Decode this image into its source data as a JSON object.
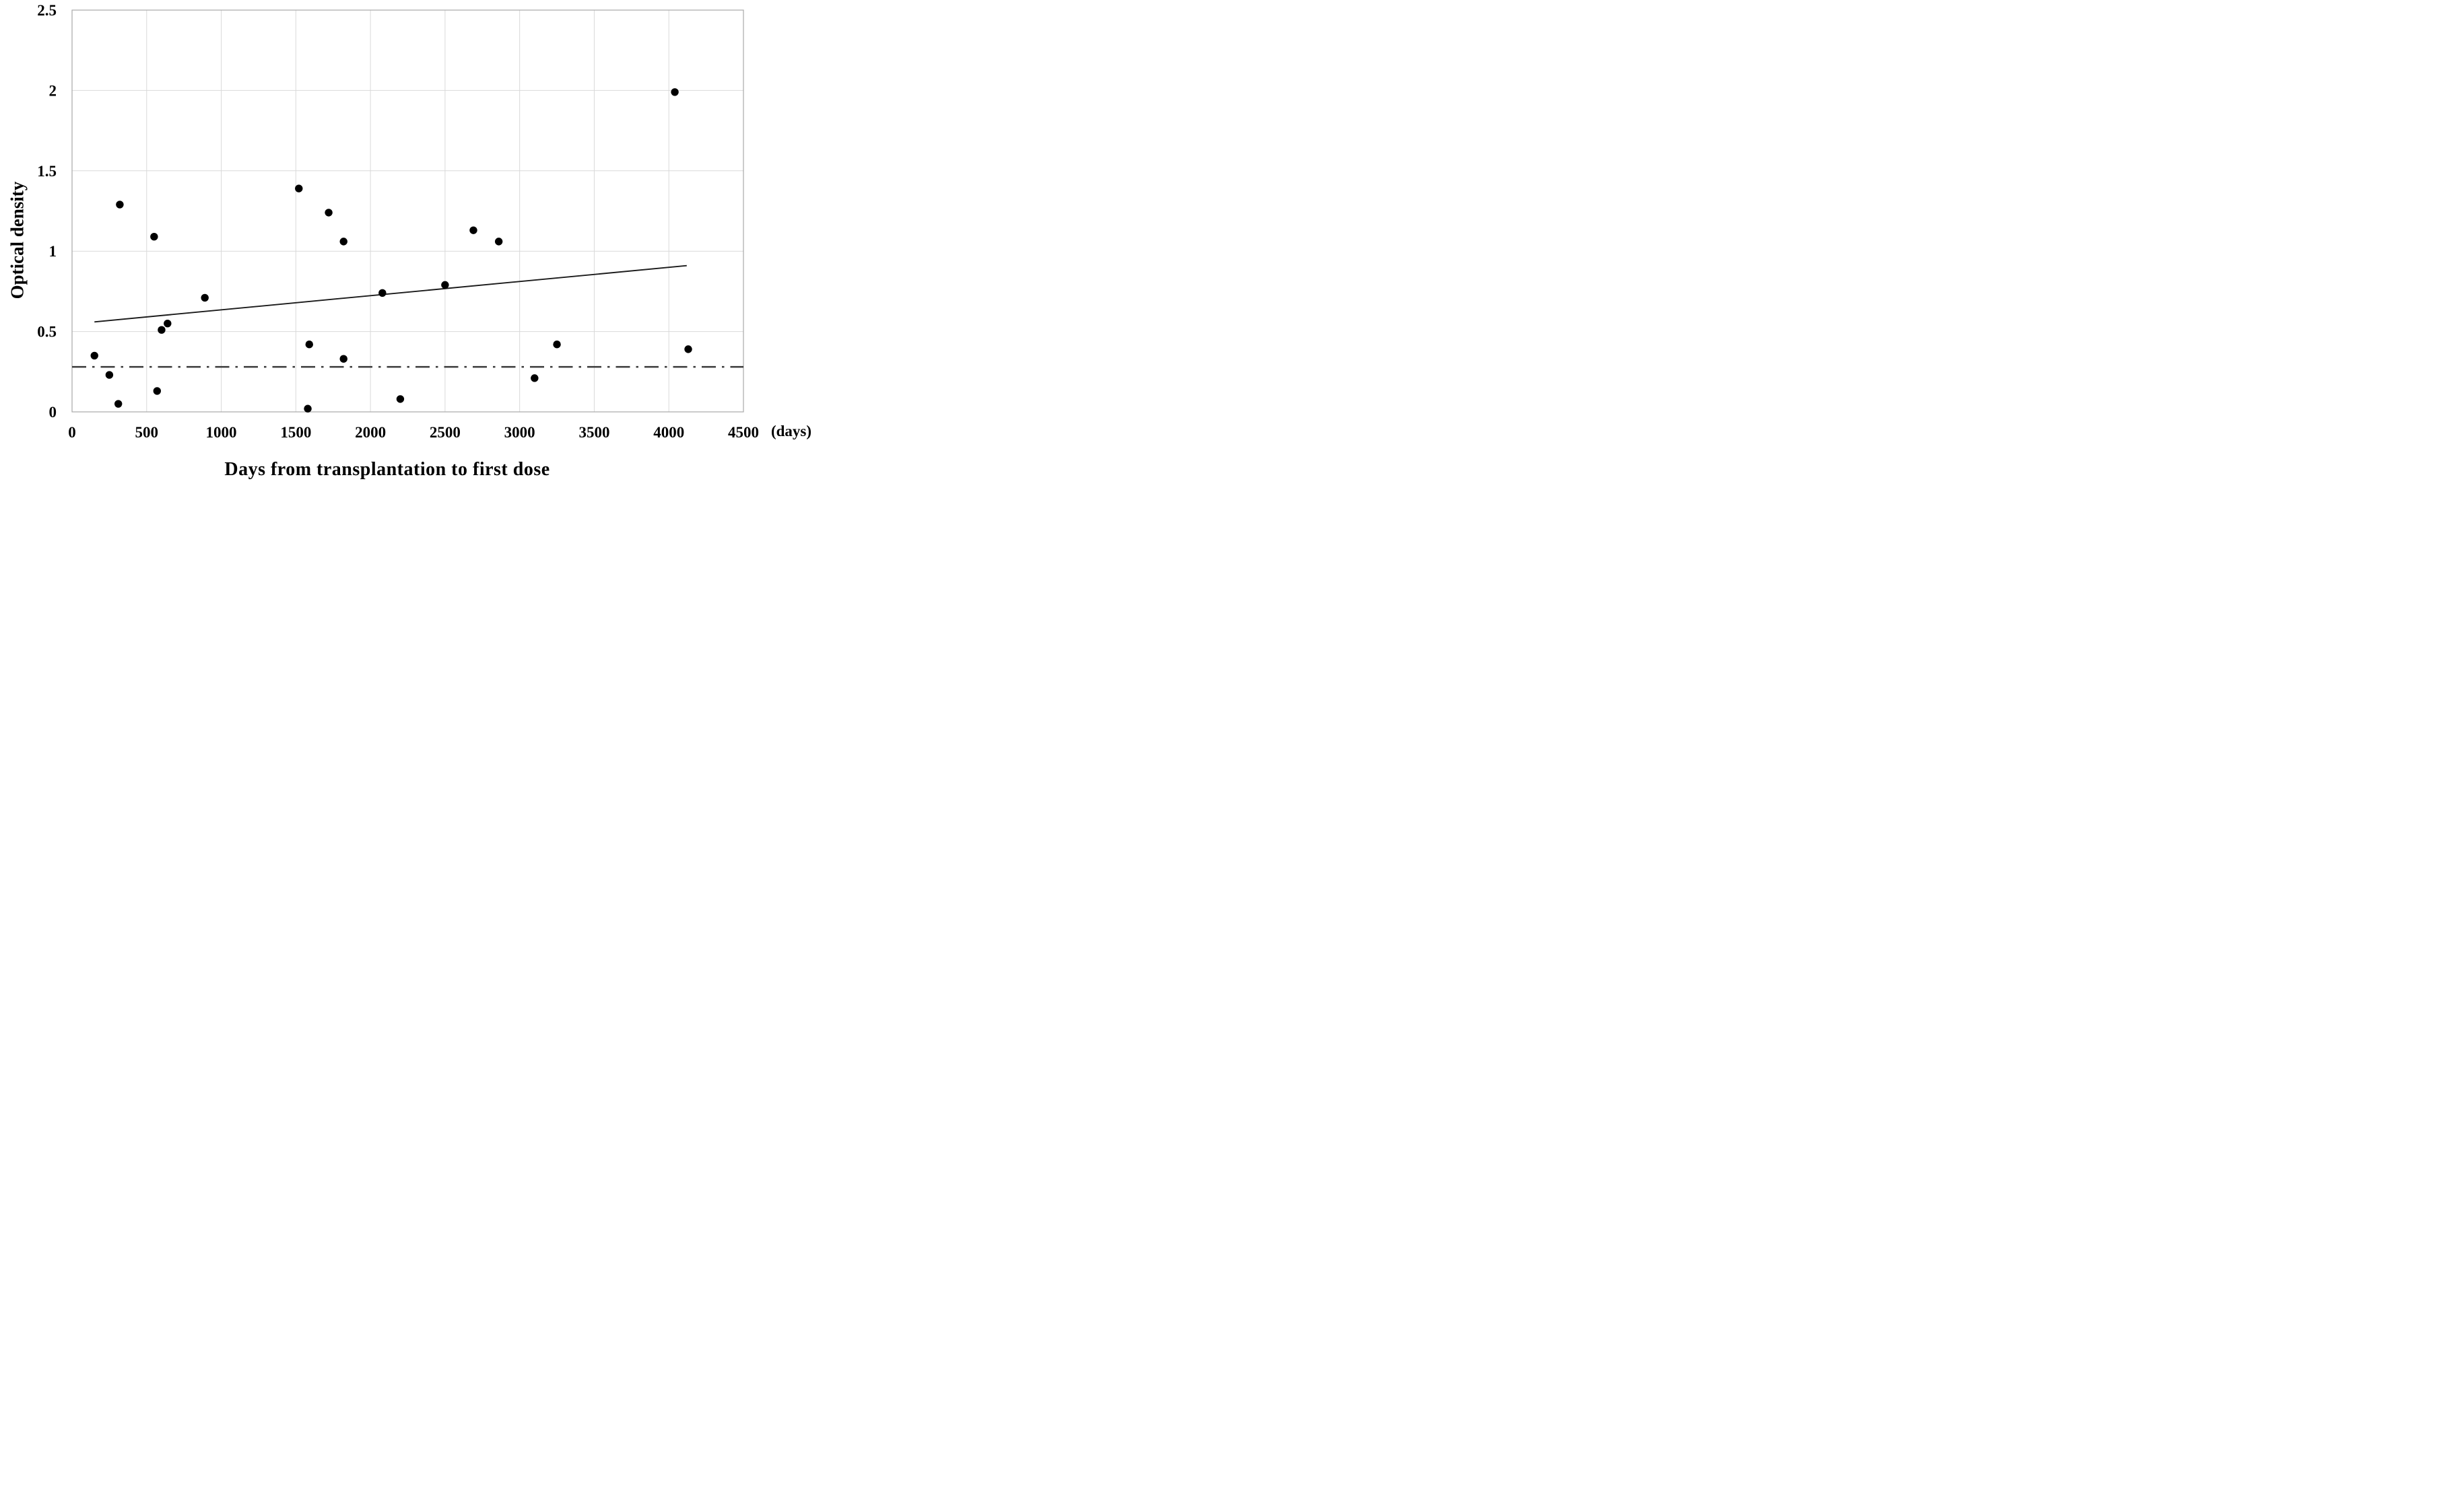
{
  "chart_data": {
    "type": "scatter",
    "title": "",
    "xlabel": "Days from transplantation to first dose",
    "ylabel": "Optical density",
    "x_unit_label": "(days)",
    "xlim": [
      0,
      4500
    ],
    "ylim": [
      0,
      2.5
    ],
    "x_ticks": [
      0,
      500,
      1000,
      1500,
      2000,
      2500,
      3000,
      3500,
      4000,
      4500
    ],
    "x_tick_labels": [
      "0",
      "500",
      "1000",
      "1500",
      "2000",
      "2500",
      "3000",
      "3500",
      "4000",
      "4500"
    ],
    "y_ticks": [
      0,
      0.5,
      1,
      1.5,
      2,
      2.5
    ],
    "y_tick_labels": [
      "0",
      "0.5",
      "1",
      "1.5",
      "2",
      "2.5"
    ],
    "grid": true,
    "legend": false,
    "marker_color": "#000000",
    "gridline_color": "#d9d9d9",
    "border_color": "#a8a8a8",
    "trend_color": "#1a1a1a",
    "threshold_color": "#3a3a3a",
    "points": [
      [
        150,
        0.35
      ],
      [
        250,
        0.23
      ],
      [
        310,
        0.05
      ],
      [
        320,
        1.29
      ],
      [
        550,
        1.09
      ],
      [
        570,
        0.13
      ],
      [
        600,
        0.51
      ],
      [
        640,
        0.55
      ],
      [
        890,
        0.71
      ],
      [
        1520,
        1.39
      ],
      [
        1580,
        0.02
      ],
      [
        1590,
        0.42
      ],
      [
        1720,
        1.24
      ],
      [
        1820,
        1.06
      ],
      [
        1820,
        0.33
      ],
      [
        2080,
        0.74
      ],
      [
        2200,
        0.08
      ],
      [
        2500,
        0.79
      ],
      [
        2690,
        1.13
      ],
      [
        2860,
        1.06
      ],
      [
        3100,
        0.21
      ],
      [
        3250,
        0.42
      ],
      [
        4040,
        1.99
      ],
      [
        4130,
        0.39
      ]
    ],
    "trend_line": {
      "x_start": 150,
      "y_start": 0.56,
      "x_end": 4120,
      "y_end": 0.91
    },
    "threshold_line": {
      "y": 0.28,
      "style": "dash-dot"
    }
  }
}
